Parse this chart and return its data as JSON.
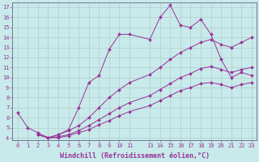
{
  "xlabel": "Windchill (Refroidissement éolien,°C)",
  "ylabel": "",
  "xlim": [
    -0.5,
    23.5
  ],
  "ylim": [
    3.8,
    17.5
  ],
  "xticks": [
    0,
    1,
    2,
    3,
    4,
    5,
    6,
    7,
    8,
    9,
    10,
    11,
    13,
    14,
    15,
    16,
    17,
    18,
    19,
    20,
    21,
    22,
    23
  ],
  "yticks": [
    4,
    5,
    6,
    7,
    8,
    9,
    10,
    11,
    12,
    13,
    14,
    15,
    16,
    17
  ],
  "background_color": "#c8eaea",
  "grid_color": "#b0cccc",
  "line_color": "#993399",
  "lines": [
    {
      "x": [
        0,
        1,
        2,
        3,
        4,
        5,
        6,
        7,
        8,
        9,
        10,
        11,
        13,
        14,
        15,
        16,
        17,
        18,
        19,
        20,
        21,
        22,
        23
      ],
      "y": [
        6.5,
        5.0,
        4.5,
        4.0,
        4.3,
        4.8,
        7.0,
        9.5,
        10.2,
        12.8,
        14.3,
        14.3,
        13.8,
        16.0,
        17.2,
        15.2,
        15.0,
        15.8,
        14.3,
        11.8,
        10.0,
        10.5,
        10.2
      ]
    },
    {
      "x": [
        2,
        3,
        4,
        5,
        6,
        7,
        8,
        9,
        10,
        11,
        13,
        14,
        15,
        16,
        17,
        18,
        19,
        20,
        21,
        22,
        23
      ],
      "y": [
        4.3,
        4.0,
        4.3,
        4.7,
        5.2,
        6.0,
        7.0,
        8.0,
        8.8,
        9.5,
        10.3,
        11.0,
        11.8,
        12.5,
        13.0,
        13.5,
        13.8,
        13.3,
        13.0,
        13.5,
        14.0
      ]
    },
    {
      "x": [
        2,
        3,
        4,
        5,
        6,
        7,
        8,
        9,
        10,
        11,
        13,
        14,
        15,
        16,
        17,
        18,
        19,
        20,
        21,
        22,
        23
      ],
      "y": [
        4.3,
        4.0,
        4.1,
        4.3,
        4.7,
        5.2,
        5.8,
        6.4,
        7.0,
        7.5,
        8.2,
        8.8,
        9.4,
        10.0,
        10.4,
        10.9,
        11.1,
        10.8,
        10.5,
        10.8,
        11.0
      ]
    },
    {
      "x": [
        2,
        3,
        4,
        5,
        6,
        7,
        8,
        9,
        10,
        11,
        13,
        14,
        15,
        16,
        17,
        18,
        19,
        20,
        21,
        22,
        23
      ],
      "y": [
        4.3,
        4.0,
        4.0,
        4.2,
        4.5,
        4.8,
        5.3,
        5.7,
        6.2,
        6.6,
        7.2,
        7.7,
        8.2,
        8.7,
        9.0,
        9.4,
        9.5,
        9.3,
        9.0,
        9.3,
        9.5
      ]
    }
  ],
  "tick_fontsize": 5,
  "axis_fontsize": 6,
  "marker": "D",
  "markersize": 2
}
